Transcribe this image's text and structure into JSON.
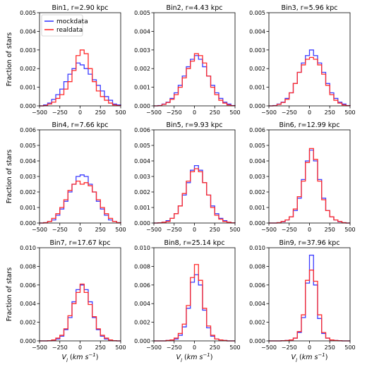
{
  "chart_data": [
    {
      "type": "histogram",
      "title": "Bin1, r=2.90 kpc",
      "xlim": [
        -500,
        500
      ],
      "ylim": [
        0,
        0.005
      ],
      "xticks": [
        "−500",
        "−250",
        "0",
        "250",
        "500"
      ],
      "yticks": [
        "0.000",
        "0.001",
        "0.002",
        "0.003",
        "0.004",
        "0.005"
      ],
      "ylabel": "Fraction of stars",
      "xlabel": "",
      "legend": [
        "mockdata",
        "realdata"
      ],
      "bin_edges": [
        -500,
        -450,
        -400,
        -350,
        -300,
        -250,
        -200,
        -150,
        -100,
        -50,
        0,
        50,
        100,
        150,
        200,
        250,
        300,
        350,
        400,
        450,
        500
      ],
      "series": [
        {
          "name": "mockdata",
          "color": "#3b3bff",
          "values": [
            0,
            5e-05,
            0.00015,
            0.00035,
            0.0006,
            0.0009,
            0.0013,
            0.0017,
            0.002,
            0.0023,
            0.0022,
            0.002,
            0.0017,
            0.0014,
            0.0011,
            0.0008,
            0.0005,
            0.0003,
            0.0001,
            5e-05
          ]
        },
        {
          "name": "realdata",
          "color": "#ff2a2a",
          "values": [
            0,
            2e-05,
            0.0001,
            0.0002,
            0.0004,
            0.0006,
            0.0009,
            0.0013,
            0.0019,
            0.0027,
            0.003,
            0.0028,
            0.002,
            0.0013,
            0.0008,
            0.0005,
            0.0003,
            0.00015,
            5e-05,
            2e-05
          ]
        }
      ]
    },
    {
      "type": "histogram",
      "title": "Bin2, r=4.43 kpc",
      "xlim": [
        -500,
        500
      ],
      "ylim": [
        0,
        0.005
      ],
      "xticks": [
        "−500",
        "−250",
        "0",
        "250",
        "500"
      ],
      "yticks": [
        "0.000",
        "0.001",
        "0.002",
        "0.003",
        "0.004",
        "0.005"
      ],
      "ylabel": "",
      "xlabel": "",
      "bin_edges": [
        -500,
        -450,
        -400,
        -350,
        -300,
        -250,
        -200,
        -150,
        -100,
        -50,
        0,
        50,
        100,
        150,
        200,
        250,
        300,
        350,
        400,
        450,
        500
      ],
      "series": [
        {
          "name": "mockdata",
          "color": "#3b3bff",
          "values": [
            0,
            2e-05,
            0.0001,
            0.0002,
            0.0004,
            0.0007,
            0.0011,
            0.0016,
            0.0021,
            0.0025,
            0.0027,
            0.0025,
            0.0021,
            0.0016,
            0.0011,
            0.0007,
            0.0004,
            0.0002,
            0.0001,
            2e-05
          ]
        },
        {
          "name": "realdata",
          "color": "#ff2a2a",
          "values": [
            0,
            1e-05,
            8e-05,
            0.00018,
            0.00035,
            0.0006,
            0.001,
            0.0015,
            0.002,
            0.0024,
            0.0028,
            0.0027,
            0.0023,
            0.0016,
            0.001,
            0.0006,
            0.0003,
            0.00015,
            5e-05,
            1e-05
          ]
        }
      ]
    },
    {
      "type": "histogram",
      "title": "Bin3, r=5.96 kpc",
      "xlim": [
        -500,
        500
      ],
      "ylim": [
        0,
        0.005
      ],
      "xticks": [
        "−500",
        "−250",
        "0",
        "250",
        "500"
      ],
      "yticks": [
        "0.000",
        "0.001",
        "0.002",
        "0.003",
        "0.004",
        "0.005"
      ],
      "ylabel": "",
      "xlabel": "",
      "bin_edges": [
        -500,
        -450,
        -400,
        -350,
        -300,
        -250,
        -200,
        -150,
        -100,
        -50,
        0,
        50,
        100,
        150,
        200,
        250,
        300,
        350,
        400,
        450,
        500
      ],
      "series": [
        {
          "name": "mockdata",
          "color": "#3b3bff",
          "values": [
            0,
            2e-05,
            0.0001,
            0.0002,
            0.0004,
            0.0007,
            0.0012,
            0.0018,
            0.0023,
            0.0027,
            0.003,
            0.0027,
            0.0023,
            0.0018,
            0.0012,
            0.0007,
            0.0004,
            0.0002,
            0.0001,
            2e-05
          ]
        },
        {
          "name": "realdata",
          "color": "#ff2a2a",
          "values": [
            0,
            1e-05,
            8e-05,
            0.00018,
            0.00035,
            0.0007,
            0.0012,
            0.0018,
            0.0022,
            0.0025,
            0.0026,
            0.0025,
            0.0022,
            0.0017,
            0.0011,
            0.0006,
            0.0003,
            0.00015,
            5e-05,
            1e-05
          ]
        }
      ]
    },
    {
      "type": "histogram",
      "title": "Bin4, r=7.66 kpc",
      "xlim": [
        -500,
        500
      ],
      "ylim": [
        0,
        0.006
      ],
      "xticks": [
        "−500",
        "−250",
        "0",
        "250",
        "500"
      ],
      "yticks": [
        "0.000",
        "0.001",
        "0.002",
        "0.003",
        "0.004",
        "0.005",
        "0.006"
      ],
      "ylabel": "Fraction of stars",
      "xlabel": "",
      "bin_edges": [
        -500,
        -450,
        -400,
        -350,
        -300,
        -250,
        -200,
        -150,
        -100,
        -50,
        0,
        50,
        100,
        150,
        200,
        250,
        300,
        350,
        400,
        450,
        500
      ],
      "series": [
        {
          "name": "mockdata",
          "color": "#3b3bff",
          "values": [
            0,
            2e-05,
            0.0001,
            0.0002,
            0.0005,
            0.0009,
            0.0014,
            0.002,
            0.0025,
            0.003,
            0.0031,
            0.003,
            0.0025,
            0.002,
            0.0014,
            0.0009,
            0.0005,
            0.0002,
            0.0001,
            2e-05
          ]
        },
        {
          "name": "realdata",
          "color": "#ff2a2a",
          "values": [
            0,
            2e-05,
            0.0001,
            0.0003,
            0.0006,
            0.001,
            0.0015,
            0.0021,
            0.0025,
            0.0027,
            0.0025,
            0.0026,
            0.0024,
            0.002,
            0.0015,
            0.001,
            0.0006,
            0.0003,
            0.0001,
            2e-05
          ]
        }
      ]
    },
    {
      "type": "histogram",
      "title": "Bin5, r=9.93 kpc",
      "xlim": [
        -500,
        500
      ],
      "ylim": [
        0,
        0.006
      ],
      "xticks": [
        "−500",
        "−250",
        "0",
        "250",
        "500"
      ],
      "yticks": [
        "0.000",
        "0.001",
        "0.002",
        "0.003",
        "0.004",
        "0.005",
        "0.006"
      ],
      "ylabel": "",
      "xlabel": "",
      "bin_edges": [
        -500,
        -450,
        -400,
        -350,
        -300,
        -250,
        -200,
        -150,
        -100,
        -50,
        0,
        50,
        100,
        150,
        200,
        250,
        300,
        350,
        400,
        450,
        500
      ],
      "series": [
        {
          "name": "mockdata",
          "color": "#3b3bff",
          "values": [
            0,
            1e-05,
            5e-05,
            0.00015,
            0.0003,
            0.0006,
            0.0011,
            0.0018,
            0.0026,
            0.0034,
            0.0037,
            0.0034,
            0.0026,
            0.0018,
            0.0011,
            0.0006,
            0.0003,
            0.00015,
            5e-05,
            1e-05
          ]
        },
        {
          "name": "realdata",
          "color": "#ff2a2a",
          "values": [
            0,
            1e-05,
            5e-05,
            0.0001,
            0.0003,
            0.0006,
            0.0011,
            0.0019,
            0.0027,
            0.0033,
            0.0035,
            0.0033,
            0.0026,
            0.0018,
            0.001,
            0.0005,
            0.00025,
            0.0001,
            5e-05,
            1e-05
          ]
        }
      ]
    },
    {
      "type": "histogram",
      "title": "Bin6, r=12.99 kpc",
      "xlim": [
        -500,
        500
      ],
      "ylim": [
        0,
        0.006
      ],
      "xticks": [
        "−500",
        "−250",
        "0",
        "250",
        "500"
      ],
      "yticks": [
        "0.000",
        "0.001",
        "0.002",
        "0.003",
        "0.004",
        "0.005",
        "0.006"
      ],
      "ylabel": "",
      "xlabel": "",
      "bin_edges": [
        -500,
        -450,
        -400,
        -350,
        -300,
        -250,
        -200,
        -150,
        -100,
        -50,
        0,
        50,
        100,
        150,
        200,
        250,
        300,
        350,
        400,
        450,
        500
      ],
      "series": [
        {
          "name": "mockdata",
          "color": "#3b3bff",
          "values": [
            0,
            0,
            2e-05,
            8e-05,
            0.0002,
            0.0004,
            0.0008,
            0.0016,
            0.0028,
            0.004,
            0.0047,
            0.004,
            0.0028,
            0.0016,
            0.0008,
            0.0004,
            0.0002,
            8e-05,
            2e-05,
            0
          ]
        },
        {
          "name": "realdata",
          "color": "#ff2a2a",
          "values": [
            0,
            0,
            2e-05,
            0.0001,
            0.0002,
            0.0004,
            0.0009,
            0.0017,
            0.0027,
            0.0039,
            0.0048,
            0.0041,
            0.0027,
            0.0015,
            0.0008,
            0.0004,
            0.0002,
            0.0001,
            2e-05,
            0
          ]
        }
      ]
    },
    {
      "type": "histogram",
      "title": "Bin7, r=17.67 kpc",
      "xlim": [
        -500,
        500
      ],
      "ylim": [
        0,
        0.01
      ],
      "xticks": [
        "−500",
        "−250",
        "0",
        "250",
        "500"
      ],
      "yticks": [
        "0.000",
        "0.002",
        "0.004",
        "0.006",
        "0.008",
        "0.010"
      ],
      "ylabel": "Fraction of stars",
      "xlabel": "V_l (km s^-1)",
      "bin_edges": [
        -500,
        -450,
        -400,
        -350,
        -300,
        -250,
        -200,
        -150,
        -100,
        -50,
        0,
        50,
        100,
        150,
        200,
        250,
        300,
        350,
        400,
        450,
        500
      ],
      "series": [
        {
          "name": "mockdata",
          "color": "#3b3bff",
          "values": [
            0,
            0,
            2e-05,
            8e-05,
            0.0002,
            0.0005,
            0.0012,
            0.0025,
            0.0042,
            0.0055,
            0.006,
            0.0055,
            0.0042,
            0.0025,
            0.0012,
            0.0005,
            0.0002,
            8e-05,
            2e-05,
            0
          ]
        },
        {
          "name": "realdata",
          "color": "#ff2a2a",
          "values": [
            0,
            0,
            2e-05,
            0.0001,
            0.0003,
            0.0006,
            0.0013,
            0.0027,
            0.004,
            0.0052,
            0.0061,
            0.0052,
            0.0039,
            0.0026,
            0.0013,
            0.0006,
            0.0003,
            0.0001,
            2e-05,
            0
          ]
        }
      ]
    },
    {
      "type": "histogram",
      "title": "Bin8, r=25.14 kpc",
      "xlim": [
        -500,
        500
      ],
      "ylim": [
        0,
        0.01
      ],
      "xticks": [
        "−500",
        "−250",
        "0",
        "250",
        "500"
      ],
      "yticks": [
        "0.000",
        "0.002",
        "0.004",
        "0.006",
        "0.008",
        "0.010"
      ],
      "ylabel": "",
      "xlabel": "V_l (km s^-1)",
      "bin_edges": [
        -500,
        -450,
        -400,
        -350,
        -300,
        -250,
        -200,
        -150,
        -100,
        -50,
        0,
        50,
        100,
        150,
        200,
        250,
        300,
        350,
        400,
        450,
        500
      ],
      "series": [
        {
          "name": "mockdata",
          "color": "#3b3bff",
          "values": [
            0,
            0,
            0,
            5e-05,
            0.0001,
            0.0002,
            0.0006,
            0.0015,
            0.0035,
            0.0063,
            0.0071,
            0.006,
            0.0033,
            0.0014,
            0.0005,
            0.0002,
            0.0001,
            5e-05,
            0,
            0
          ]
        },
        {
          "name": "realdata",
          "color": "#ff2a2a",
          "values": [
            0,
            0,
            0,
            5e-05,
            0.0001,
            0.0003,
            0.0008,
            0.0018,
            0.0038,
            0.0068,
            0.0082,
            0.0065,
            0.0035,
            0.0016,
            0.0006,
            0.0002,
            0.0001,
            5e-05,
            0,
            0
          ]
        }
      ]
    },
    {
      "type": "histogram",
      "title": "Bin9, r=37.96 kpc",
      "xlim": [
        -500,
        500
      ],
      "ylim": [
        0,
        0.01
      ],
      "xticks": [
        "−500",
        "−250",
        "0",
        "250",
        "500"
      ],
      "yticks": [
        "0.000",
        "0.002",
        "0.004",
        "0.006",
        "0.008",
        "0.010"
      ],
      "ylabel": "",
      "xlabel": "V_l (km s^-1)",
      "bin_edges": [
        -500,
        -450,
        -400,
        -350,
        -300,
        -250,
        -200,
        -150,
        -100,
        -50,
        0,
        50,
        100,
        150,
        200,
        250,
        300,
        350,
        400,
        450,
        500
      ],
      "series": [
        {
          "name": "mockdata",
          "color": "#3b3bff",
          "values": [
            0,
            0,
            0,
            2e-05,
            5e-05,
            0.0001,
            0.0003,
            0.0009,
            0.0025,
            0.0062,
            0.0092,
            0.006,
            0.0024,
            0.0008,
            0.0003,
            0.0001,
            5e-05,
            2e-05,
            0,
            0
          ]
        },
        {
          "name": "realdata",
          "color": "#ff2a2a",
          "values": [
            0,
            0,
            0,
            2e-05,
            5e-05,
            0.0001,
            0.0003,
            0.001,
            0.0028,
            0.0065,
            0.0076,
            0.0064,
            0.0028,
            0.0009,
            0.0003,
            0.0001,
            5e-05,
            2e-05,
            0,
            0
          ]
        }
      ]
    }
  ]
}
